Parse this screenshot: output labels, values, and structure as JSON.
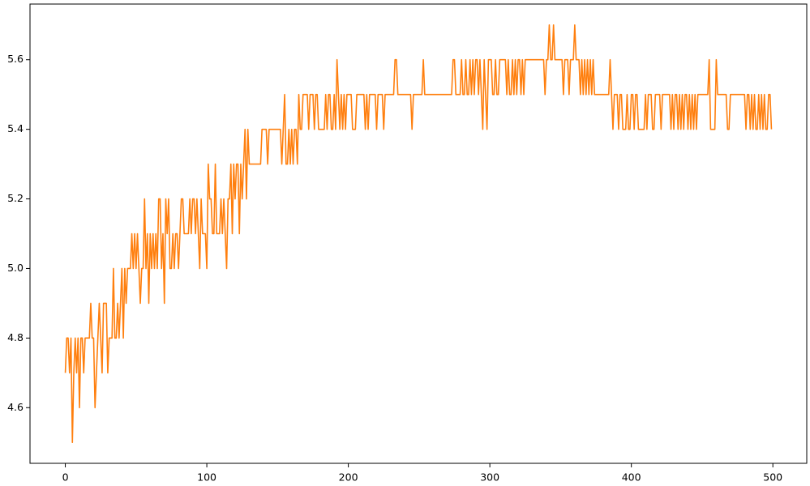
{
  "chart_data": {
    "type": "line",
    "x": [
      0,
      1,
      2,
      3,
      4,
      5,
      6,
      7,
      8,
      9,
      10,
      11,
      12,
      13,
      14,
      15,
      16,
      17,
      18,
      19,
      20,
      21,
      22,
      23,
      24,
      25,
      26,
      27,
      28,
      29,
      30,
      31,
      32,
      33,
      34,
      35,
      36,
      37,
      38,
      39,
      40,
      41,
      42,
      43,
      44,
      45,
      46,
      47,
      48,
      49,
      50,
      51,
      52,
      53,
      54,
      55,
      56,
      57,
      58,
      59,
      60,
      61,
      62,
      63,
      64,
      65,
      66,
      67,
      68,
      69,
      70,
      71,
      72,
      73,
      74,
      75,
      76,
      77,
      78,
      79,
      80,
      81,
      82,
      83,
      84,
      85,
      86,
      87,
      88,
      89,
      90,
      91,
      92,
      93,
      94,
      95,
      96,
      97,
      98,
      99,
      100,
      101,
      102,
      103,
      104,
      105,
      106,
      107,
      108,
      109,
      110,
      111,
      112,
      113,
      114,
      115,
      116,
      117,
      118,
      119,
      120,
      121,
      122,
      123,
      124,
      125,
      126,
      127,
      128,
      129,
      130,
      131,
      132,
      133,
      134,
      135,
      136,
      137,
      138,
      139,
      140,
      141,
      142,
      143,
      144,
      145,
      146,
      147,
      148,
      149,
      150,
      151,
      152,
      153,
      154,
      155,
      156,
      157,
      158,
      159,
      160,
      161,
      162,
      163,
      164,
      165,
      166,
      167,
      168,
      169,
      170,
      171,
      172,
      173,
      174,
      175,
      176,
      177,
      178,
      179,
      180,
      181,
      182,
      183,
      184,
      185,
      186,
      187,
      188,
      189,
      190,
      191,
      192,
      193,
      194,
      195,
      196,
      197,
      198,
      199,
      200,
      201,
      202,
      203,
      204,
      205,
      206,
      207,
      208,
      209,
      210,
      211,
      212,
      213,
      214,
      215,
      216,
      217,
      218,
      219,
      220,
      221,
      222,
      223,
      224,
      225,
      226,
      227,
      228,
      229,
      230,
      231,
      232,
      233,
      234,
      235,
      236,
      237,
      238,
      239,
      240,
      241,
      242,
      243,
      244,
      245,
      246,
      247,
      248,
      249,
      250,
      251,
      252,
      253,
      254,
      255,
      256,
      257,
      258,
      259,
      260,
      261,
      262,
      263,
      264,
      265,
      266,
      267,
      268,
      269,
      270,
      271,
      272,
      273,
      274,
      275,
      276,
      277,
      278,
      279,
      280,
      281,
      282,
      283,
      284,
      285,
      286,
      287,
      288,
      289,
      290,
      291,
      292,
      293,
      294,
      295,
      296,
      297,
      298,
      299,
      300,
      301,
      302,
      303,
      304,
      305,
      306,
      307,
      308,
      309,
      310,
      311,
      312,
      313,
      314,
      315,
      316,
      317,
      318,
      319,
      320,
      321,
      322,
      323,
      324,
      325,
      326,
      327,
      328,
      329,
      330,
      331,
      332,
      333,
      334,
      335,
      336,
      337,
      338,
      339,
      340,
      341,
      342,
      343,
      344,
      345,
      346,
      347,
      348,
      349,
      350,
      351,
      352,
      353,
      354,
      355,
      356,
      357,
      358,
      359,
      360,
      361,
      362,
      363,
      364,
      365,
      366,
      367,
      368,
      369,
      370,
      371,
      372,
      373,
      374,
      375,
      376,
      377,
      378,
      379,
      380,
      381,
      382,
      383,
      384,
      385,
      386,
      387,
      388,
      389,
      390,
      391,
      392,
      393,
      394,
      395,
      396,
      397,
      398,
      399,
      400,
      401,
      402,
      403,
      404,
      405,
      406,
      407,
      408,
      409,
      410,
      411,
      412,
      413,
      414,
      415,
      416,
      417,
      418,
      419,
      420,
      421,
      422,
      423,
      424,
      425,
      426,
      427,
      428,
      429,
      430,
      431,
      432,
      433,
      434,
      435,
      436,
      437,
      438,
      439,
      440,
      441,
      442,
      443,
      444,
      445,
      446,
      447,
      448,
      449,
      450,
      451,
      452,
      453,
      454,
      455,
      456,
      457,
      458,
      459,
      460,
      461,
      462,
      463,
      464,
      465,
      466,
      467,
      468,
      469,
      470,
      471,
      472,
      473,
      474,
      475,
      476,
      477,
      478,
      479,
      480,
      481,
      482,
      483,
      484,
      485,
      486,
      487,
      488,
      489,
      490,
      491,
      492,
      493,
      494,
      495,
      496,
      497,
      498,
      499
    ],
    "series": [
      {
        "color": "#ff7f0e",
        "values": [
          4.7,
          4.8,
          4.8,
          4.7,
          4.8,
          4.5,
          4.7,
          4.8,
          4.7,
          4.8,
          4.6,
          4.8,
          4.8,
          4.7,
          4.8,
          4.8,
          4.8,
          4.8,
          4.9,
          4.8,
          4.8,
          4.6,
          4.7,
          4.8,
          4.9,
          4.8,
          4.7,
          4.9,
          4.9,
          4.9,
          4.7,
          4.8,
          4.8,
          4.8,
          5.0,
          4.8,
          4.8,
          4.9,
          4.8,
          4.9,
          5.0,
          4.8,
          5.0,
          4.9,
          5.0,
          5.0,
          5.0,
          5.1,
          5.0,
          5.1,
          5.0,
          5.1,
          5.0,
          4.9,
          5.0,
          5.0,
          5.2,
          5.0,
          5.1,
          4.9,
          5.1,
          5.0,
          5.1,
          5.0,
          5.1,
          5.0,
          5.2,
          5.2,
          5.0,
          5.1,
          4.9,
          5.2,
          5.1,
          5.2,
          5.0,
          5.0,
          5.1,
          5.0,
          5.1,
          5.1,
          5.0,
          5.1,
          5.2,
          5.2,
          5.1,
          5.1,
          5.1,
          5.1,
          5.2,
          5.1,
          5.2,
          5.2,
          5.1,
          5.2,
          5.1,
          5.0,
          5.2,
          5.1,
          5.1,
          5.1,
          5.0,
          5.3,
          5.2,
          5.2,
          5.1,
          5.1,
          5.3,
          5.1,
          5.1,
          5.1,
          5.2,
          5.1,
          5.2,
          5.1,
          5.0,
          5.2,
          5.2,
          5.3,
          5.1,
          5.3,
          5.2,
          5.3,
          5.3,
          5.1,
          5.3,
          5.2,
          5.3,
          5.4,
          5.2,
          5.4,
          5.3,
          5.3,
          5.3,
          5.3,
          5.3,
          5.3,
          5.3,
          5.3,
          5.3,
          5.4,
          5.4,
          5.4,
          5.4,
          5.3,
          5.4,
          5.4,
          5.4,
          5.4,
          5.4,
          5.4,
          5.4,
          5.4,
          5.4,
          5.3,
          5.4,
          5.5,
          5.3,
          5.3,
          5.4,
          5.3,
          5.4,
          5.3,
          5.4,
          5.4,
          5.3,
          5.5,
          5.4,
          5.4,
          5.5,
          5.5,
          5.5,
          5.5,
          5.4,
          5.5,
          5.5,
          5.5,
          5.4,
          5.5,
          5.5,
          5.4,
          5.4,
          5.4,
          5.4,
          5.4,
          5.5,
          5.4,
          5.5,
          5.5,
          5.4,
          5.4,
          5.5,
          5.4,
          5.6,
          5.5,
          5.4,
          5.5,
          5.4,
          5.5,
          5.4,
          5.5,
          5.5,
          5.5,
          5.5,
          5.4,
          5.4,
          5.4,
          5.5,
          5.5,
          5.5,
          5.5,
          5.5,
          5.5,
          5.4,
          5.5,
          5.4,
          5.5,
          5.5,
          5.5,
          5.5,
          5.5,
          5.4,
          5.5,
          5.5,
          5.5,
          5.5,
          5.4,
          5.5,
          5.5,
          5.5,
          5.5,
          5.5,
          5.5,
          5.5,
          5.6,
          5.6,
          5.5,
          5.5,
          5.5,
          5.5,
          5.5,
          5.5,
          5.5,
          5.5,
          5.5,
          5.5,
          5.4,
          5.5,
          5.5,
          5.5,
          5.5,
          5.5,
          5.5,
          5.5,
          5.6,
          5.5,
          5.5,
          5.5,
          5.5,
          5.5,
          5.5,
          5.5,
          5.5,
          5.5,
          5.5,
          5.5,
          5.5,
          5.5,
          5.5,
          5.5,
          5.5,
          5.5,
          5.5,
          5.5,
          5.5,
          5.6,
          5.6,
          5.5,
          5.5,
          5.5,
          5.5,
          5.6,
          5.5,
          5.5,
          5.6,
          5.5,
          5.5,
          5.6,
          5.5,
          5.6,
          5.5,
          5.6,
          5.6,
          5.5,
          5.6,
          5.5,
          5.4,
          5.6,
          5.5,
          5.4,
          5.6,
          5.6,
          5.6,
          5.5,
          5.5,
          5.6,
          5.5,
          5.5,
          5.6,
          5.6,
          5.6,
          5.6,
          5.6,
          5.5,
          5.6,
          5.5,
          5.5,
          5.6,
          5.5,
          5.6,
          5.5,
          5.6,
          5.6,
          5.5,
          5.6,
          5.5,
          5.6,
          5.6,
          5.6,
          5.6,
          5.6,
          5.6,
          5.6,
          5.6,
          5.6,
          5.6,
          5.6,
          5.6,
          5.6,
          5.6,
          5.5,
          5.6,
          5.6,
          5.7,
          5.6,
          5.6,
          5.7,
          5.6,
          5.6,
          5.6,
          5.6,
          5.6,
          5.6,
          5.5,
          5.6,
          5.6,
          5.6,
          5.5,
          5.6,
          5.6,
          5.6,
          5.7,
          5.6,
          5.6,
          5.6,
          5.5,
          5.6,
          5.5,
          5.6,
          5.5,
          5.6,
          5.5,
          5.6,
          5.5,
          5.6,
          5.5,
          5.5,
          5.5,
          5.5,
          5.5,
          5.5,
          5.5,
          5.5,
          5.5,
          5.5,
          5.5,
          5.6,
          5.5,
          5.4,
          5.5,
          5.5,
          5.5,
          5.4,
          5.5,
          5.5,
          5.4,
          5.4,
          5.4,
          5.5,
          5.4,
          5.4,
          5.5,
          5.5,
          5.4,
          5.5,
          5.5,
          5.4,
          5.4,
          5.4,
          5.4,
          5.4,
          5.5,
          5.4,
          5.5,
          5.5,
          5.5,
          5.4,
          5.4,
          5.5,
          5.5,
          5.5,
          5.5,
          5.4,
          5.5,
          5.5,
          5.5,
          5.5,
          5.5,
          5.5,
          5.4,
          5.5,
          5.4,
          5.5,
          5.5,
          5.4,
          5.5,
          5.4,
          5.5,
          5.4,
          5.5,
          5.5,
          5.4,
          5.5,
          5.4,
          5.5,
          5.4,
          5.5,
          5.4,
          5.5,
          5.5,
          5.5,
          5.5,
          5.5,
          5.5,
          5.5,
          5.5,
          5.6,
          5.4,
          5.4,
          5.4,
          5.4,
          5.6,
          5.5,
          5.5,
          5.5,
          5.5,
          5.5,
          5.5,
          5.5,
          5.4,
          5.4,
          5.5,
          5.5,
          5.5,
          5.5,
          5.5,
          5.5,
          5.5,
          5.5,
          5.5,
          5.5,
          5.5,
          5.4,
          5.5,
          5.5,
          5.4,
          5.5,
          5.4,
          5.5,
          5.4,
          5.4,
          5.5,
          5.4,
          5.5,
          5.4,
          5.5,
          5.4,
          5.4,
          5.5,
          5.5,
          5.4
        ]
      }
    ],
    "xlim": [
      -24.95,
      523.95
    ],
    "xticks": [
      0,
      100,
      200,
      300,
      400,
      500
    ],
    "ylim": [
      4.44,
      5.76
    ],
    "yticks": [
      4.6,
      4.8,
      {
        "value": 5,
        "label": "5.0"
      },
      5.2,
      5.4,
      5.6
    ]
  }
}
